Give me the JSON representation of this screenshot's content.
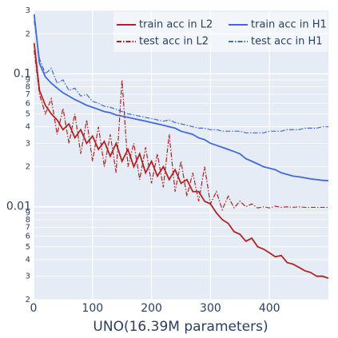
{
  "chart_data": {
    "type": "line",
    "x_label": "UNO(16.39M parameters)",
    "log_y": true,
    "grid": true,
    "legend_position": "top-right",
    "xlim": [
      0,
      500
    ],
    "xticks": [
      0,
      100,
      200,
      300,
      400
    ],
    "ylim": [
      0.002,
      0.3
    ],
    "yticks": [
      {
        "value": 0.002,
        "label": "2"
      },
      {
        "value": 0.003,
        "label": "3"
      },
      {
        "value": 0.004,
        "label": "4"
      },
      {
        "value": 0.005,
        "label": "5"
      },
      {
        "value": 0.006,
        "label": "6"
      },
      {
        "value": 0.007,
        "label": "7"
      },
      {
        "value": 0.008,
        "label": "8"
      },
      {
        "value": 0.009,
        "label": "9"
      },
      0.01,
      {
        "value": 0.02,
        "label": "2"
      },
      {
        "value": 0.03,
        "label": "3"
      },
      {
        "value": 0.04,
        "label": "4"
      },
      {
        "value": 0.05,
        "label": "5"
      },
      {
        "value": 0.06,
        "label": "6"
      },
      {
        "value": 0.07,
        "label": "7"
      },
      {
        "value": 0.08,
        "label": "8"
      },
      {
        "value": 0.09,
        "label": "9"
      },
      0.1,
      {
        "value": 0.2,
        "label": "2"
      },
      {
        "value": 0.3,
        "label": "3"
      }
    ],
    "x": [
      1,
      10,
      20,
      30,
      40,
      50,
      60,
      70,
      80,
      90,
      100,
      110,
      120,
      130,
      140,
      150,
      160,
      170,
      180,
      190,
      200,
      210,
      220,
      230,
      240,
      250,
      260,
      270,
      280,
      290,
      300,
      310,
      320,
      330,
      340,
      350,
      360,
      370,
      380,
      390,
      400,
      410,
      420,
      430,
      440,
      450,
      460,
      470,
      480,
      490,
      500
    ],
    "series": [
      {
        "name": "train acc in L2",
        "color": "#b22222",
        "dash": "solid",
        "values": [
          0.17,
          0.075,
          0.058,
          0.05,
          0.045,
          0.038,
          0.042,
          0.033,
          0.038,
          0.03,
          0.034,
          0.027,
          0.031,
          0.024,
          0.03,
          0.022,
          0.027,
          0.02,
          0.025,
          0.018,
          0.022,
          0.017,
          0.02,
          0.016,
          0.019,
          0.015,
          0.016,
          0.013,
          0.013,
          0.011,
          0.0105,
          0.009,
          0.008,
          0.0075,
          0.0065,
          0.0062,
          0.0055,
          0.0058,
          0.005,
          0.0048,
          0.0045,
          0.0042,
          0.0043,
          0.0038,
          0.0037,
          0.0035,
          0.0033,
          0.0032,
          0.003,
          0.003,
          0.0029
        ]
      },
      {
        "name": "train acc in H1",
        "color": "#4169e1",
        "dash": "solid",
        "values": [
          0.28,
          0.12,
          0.095,
          0.085,
          0.078,
          0.072,
          0.068,
          0.064,
          0.061,
          0.058,
          0.056,
          0.054,
          0.052,
          0.051,
          0.049,
          0.048,
          0.047,
          0.046,
          0.045,
          0.044,
          0.043,
          0.042,
          0.041,
          0.04,
          0.039,
          0.037,
          0.036,
          0.035,
          0.033,
          0.032,
          0.03,
          0.029,
          0.028,
          0.027,
          0.026,
          0.025,
          0.023,
          0.022,
          0.021,
          0.02,
          0.0195,
          0.019,
          0.018,
          0.0175,
          0.017,
          0.0168,
          0.0165,
          0.0162,
          0.016,
          0.0158,
          0.0157
        ]
      },
      {
        "name": "test acc in L2",
        "color": "#b22222",
        "dash": "dashdot",
        "values": [
          0.15,
          0.07,
          0.05,
          0.065,
          0.035,
          0.055,
          0.03,
          0.05,
          0.025,
          0.045,
          0.022,
          0.04,
          0.02,
          0.035,
          0.018,
          0.09,
          0.02,
          0.03,
          0.016,
          0.028,
          0.015,
          0.025,
          0.014,
          0.035,
          0.013,
          0.022,
          0.012,
          0.018,
          0.011,
          0.02,
          0.0105,
          0.013,
          0.0095,
          0.012,
          0.0098,
          0.011,
          0.01,
          0.0105,
          0.0098,
          0.01,
          0.0098,
          0.0101,
          0.0099,
          0.01,
          0.0099,
          0.01,
          0.0099,
          0.0099,
          0.0099,
          0.0099,
          0.0099
        ]
      },
      {
        "name": "test acc in H1",
        "color": "#4169e1",
        "dash": "dashdot",
        "values": [
          0.25,
          0.13,
          0.1,
          0.11,
          0.085,
          0.09,
          0.075,
          0.078,
          0.068,
          0.07,
          0.062,
          0.06,
          0.057,
          0.056,
          0.054,
          0.052,
          0.05,
          0.049,
          0.048,
          0.047,
          0.046,
          0.045,
          0.044,
          0.045,
          0.043,
          0.042,
          0.041,
          0.04,
          0.039,
          0.039,
          0.038,
          0.038,
          0.037,
          0.037,
          0.037,
          0.037,
          0.036,
          0.036,
          0.036,
          0.036,
          0.037,
          0.037,
          0.037,
          0.038,
          0.038,
          0.038,
          0.039,
          0.039,
          0.039,
          0.04,
          0.04
        ]
      }
    ]
  }
}
